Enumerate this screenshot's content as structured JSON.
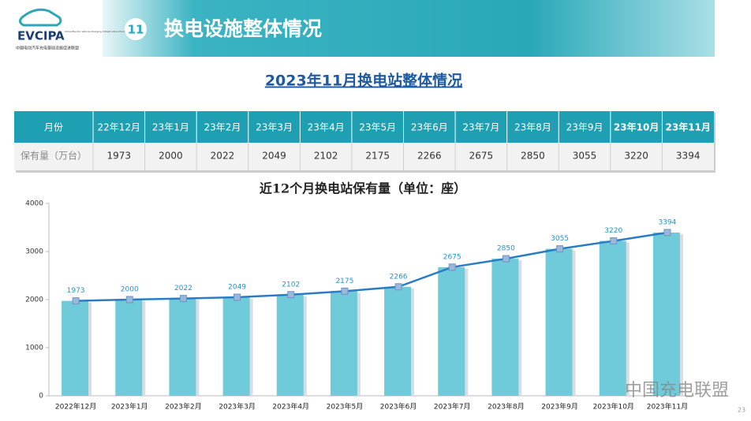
{
  "header": {
    "logo": "EVCIPA",
    "logo_subtitle": "China Electric Vehicle Charging Infrastructure Promotion Alliance",
    "logo_caption": "中国电动汽车充电基础设施促进联盟",
    "section_number": "11",
    "title": "换电设施整体情况"
  },
  "subtitle": "2023年11月换电站整体情况",
  "table": {
    "header": [
      "月份",
      "22年12月",
      "23年1月",
      "23年2月",
      "23年3月",
      "23年4月",
      "23年5月",
      "23年6月",
      "23年7月",
      "23年8月",
      "23年9月",
      "23年10月",
      "23年11月"
    ],
    "rows": [
      [
        "保有量（万台）",
        1973,
        2000,
        2022,
        2049,
        2102,
        2175,
        2266,
        2675,
        2850,
        3055,
        3220,
        3394
      ]
    ]
  },
  "chart_data": {
    "type": "bar",
    "title": "近12个月换电站保有量（单位：座）",
    "categories": [
      "2022年12月",
      "2023年1月",
      "2023年2月",
      "2023年3月",
      "2023年4月",
      "2023年5月",
      "2023年6月",
      "2023年7月",
      "2023年8月",
      "2023年9月",
      "2023年10月",
      "2023年11月"
    ],
    "values": [
      1973,
      2000,
      2022,
      2049,
      2102,
      2175,
      2266,
      2675,
      2850,
      3055,
      3220,
      3394
    ],
    "color": "#6fcbd9",
    "line_color": "#2a7cc4",
    "line_overlay": true,
    "data_labels": true,
    "ylim": [
      0,
      4000
    ],
    "yticks": [
      0,
      1000,
      2000,
      3000,
      4000
    ]
  },
  "watermark": "中国充电联盟",
  "page_number": "23"
}
